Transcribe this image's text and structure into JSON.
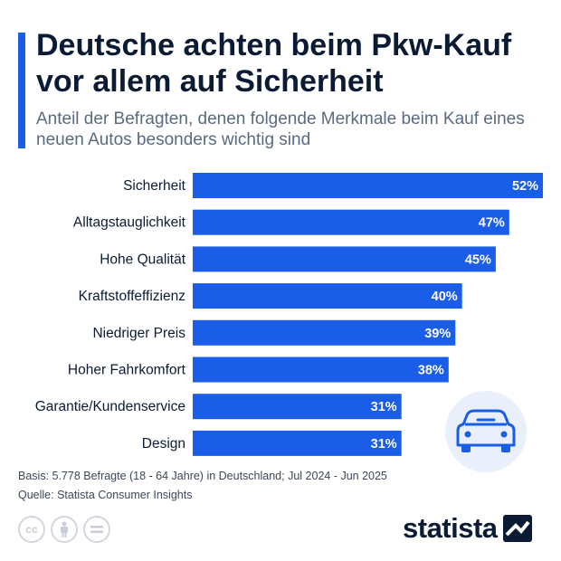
{
  "header": {
    "title": "Deutsche achten beim Pkw-Kauf vor allem auf Sicherheit",
    "subtitle": "Anteil der Befragten, denen folgende Merkmale beim Kauf eines neuen Autos besonders wichtig sind"
  },
  "colors": {
    "accent": "#1a5ee8",
    "bar": "#1a5ee8",
    "text": "#0b1b33"
  },
  "chart_data": {
    "type": "bar",
    "orientation": "horizontal",
    "categories": [
      "Sicherheit",
      "Alltagstauglichkeit",
      "Hohe Qualität",
      "Kraftstoffeffizienz",
      "Niedriger Preis",
      "Hoher Fahrkomfort",
      "Garantie/Kundenservice",
      "Design"
    ],
    "values": [
      52,
      47,
      45,
      40,
      39,
      38,
      31,
      31
    ],
    "value_labels": [
      "52%",
      "47%",
      "45%",
      "40%",
      "39%",
      "38%",
      "31%",
      "31%"
    ],
    "unit": "%",
    "xlim": [
      0,
      52
    ],
    "grid": false,
    "legend": "none"
  },
  "footer": {
    "basis": "Basis: 5.778 Befragte (18 - 64 Jahre) in Deutschland; Jul 2024 - Jun 2025",
    "source": "Quelle: Statista Consumer Insights",
    "brand": "statista"
  },
  "icons": [
    "car-icon",
    "creative-commons-icon",
    "attribution-icon",
    "no-derivatives-icon",
    "statista-logo-mark"
  ]
}
